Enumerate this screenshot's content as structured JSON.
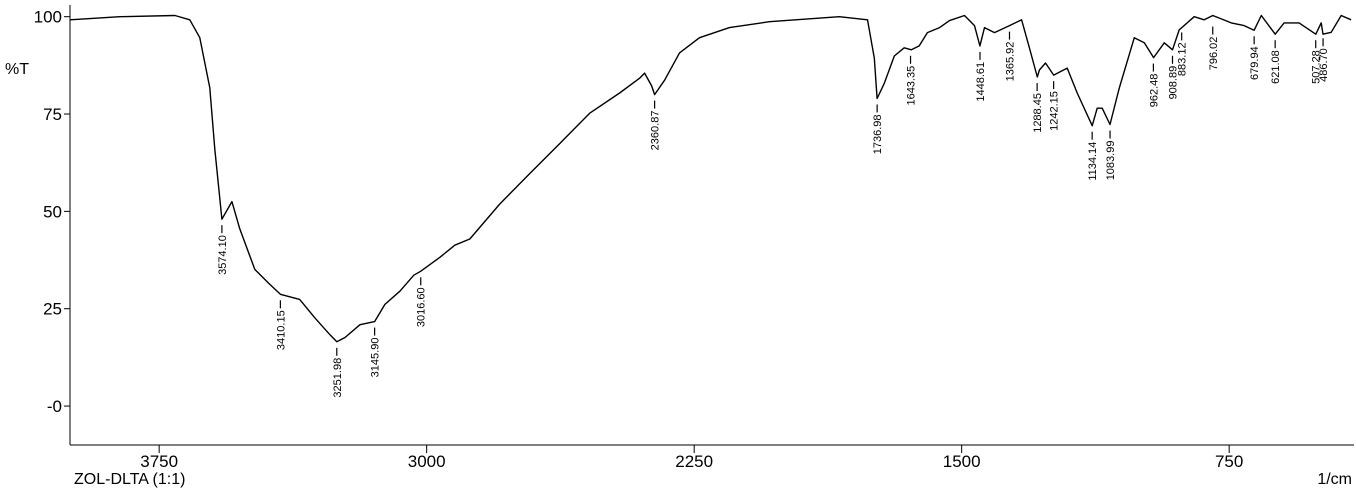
{
  "chart_data": {
    "type": "line",
    "title": "ZOL-DLTA (1:1)",
    "y_label": "%T",
    "x_label": "1/cm",
    "xlim": [
      4000,
      400
    ],
    "ylim": [
      -10,
      103
    ],
    "xticks": [
      3750,
      3000,
      2250,
      1500,
      750
    ],
    "yticks": [
      100,
      75,
      50,
      25,
      {
        "value": 0,
        "label": "-0"
      }
    ],
    "series": [
      {
        "name": "ZOL-DLTA (1:1)",
        "color": "#000000",
        "x": [
          4000,
          3860,
          3706,
          3664,
          3636,
          3608,
          3594,
          3574,
          3546,
          3524,
          3482,
          3440,
          3410,
          3356,
          3314,
          3271,
          3252,
          3229,
          3187,
          3146,
          3117,
          3075,
          3036,
          3017,
          2963,
          2921,
          2879,
          2795,
          2711,
          2627,
          2543,
          2459,
          2403,
          2389,
          2369,
          2361,
          2333,
          2291,
          2235,
          2151,
          2039,
          1843,
          1764,
          1745,
          1737,
          1717,
          1689,
          1661,
          1641,
          1619,
          1596,
          1562,
          1534,
          1492,
          1464,
          1449,
          1436,
          1408,
          1366,
          1332,
          1310,
          1288,
          1282,
          1265,
          1242,
          1204,
          1176,
          1134,
          1120,
          1106,
          1084,
          1058,
          1016,
          988,
          962,
          932,
          909,
          890,
          848,
          820,
          796,
          744,
          708,
          680,
          660,
          621,
          596,
          554,
          507,
          492,
          487,
          464,
          436,
          408
        ],
        "values": [
          99.2,
          100,
          100.3,
          99.2,
          94.6,
          81.7,
          66,
          48,
          52.5,
          45.5,
          35.1,
          31.3,
          28.7,
          27.4,
          22.7,
          18.3,
          16.5,
          17.6,
          20.9,
          21.7,
          26.1,
          29.5,
          33.6,
          34.6,
          38.2,
          41.3,
          42.9,
          51.9,
          59.7,
          67.4,
          75.2,
          80.4,
          84.2,
          85.5,
          82.2,
          80,
          83.7,
          90.7,
          94.6,
          97.2,
          98.7,
          100,
          99.2,
          89.4,
          79,
          82.9,
          89.9,
          92,
          91.5,
          92.5,
          95.9,
          97.2,
          99,
          100.3,
          97.7,
          92.5,
          97.2,
          95.9,
          97.7,
          99.2,
          92,
          84.5,
          86.3,
          88.1,
          85,
          86.8,
          80.4,
          72,
          76.5,
          76.5,
          72.3,
          81.7,
          94.6,
          93.3,
          89.5,
          93.3,
          91.5,
          96.6,
          100,
          99.2,
          100.3,
          98.4,
          97.7,
          96.5,
          100.3,
          95.5,
          98.4,
          98.4,
          95.5,
          98.4,
          95.5,
          96,
          100.3,
          99.2
        ]
      }
    ],
    "peaks": [
      {
        "x": 3574.1,
        "y": 48,
        "label": "3574.10"
      },
      {
        "x": 3410.15,
        "y": 28.7,
        "label": "3410.15"
      },
      {
        "x": 3251.98,
        "y": 16.5,
        "label": "3251.98"
      },
      {
        "x": 3145.9,
        "y": 21.7,
        "label": "3145.90"
      },
      {
        "x": 3016.6,
        "y": 34.6,
        "label": "3016.60"
      },
      {
        "x": 2360.87,
        "y": 80,
        "label": "2360.87"
      },
      {
        "x": 1736.98,
        "y": 79,
        "label": "1736.98"
      },
      {
        "x": 1643.35,
        "y": 91.5,
        "label": "1643.35"
      },
      {
        "x": 1448.61,
        "y": 92.5,
        "label": "1448.61"
      },
      {
        "x": 1365.92,
        "y": 97.7,
        "label": "1365.92"
      },
      {
        "x": 1288.45,
        "y": 84.5,
        "label": "1288.45"
      },
      {
        "x": 1242.15,
        "y": 85,
        "label": "1242.15"
      },
      {
        "x": 1134.14,
        "y": 72,
        "label": "1134.14"
      },
      {
        "x": 1083.99,
        "y": 72.3,
        "label": "1083.99"
      },
      {
        "x": 962.48,
        "y": 89.5,
        "label": "962.48"
      },
      {
        "x": 908.89,
        "y": 91.5,
        "label": "908.89"
      },
      {
        "x": 883.12,
        "y": 97.5,
        "label": "883.12"
      },
      {
        "x": 796.02,
        "y": 99,
        "label": "796.02"
      },
      {
        "x": 679.94,
        "y": 96.5,
        "label": "679.94"
      },
      {
        "x": 621.08,
        "y": 95.5,
        "label": "621.08"
      },
      {
        "x": 507.28,
        "y": 95.5,
        "label": "507.28"
      },
      {
        "x": 486.7,
        "y": 96,
        "label": "486.70"
      }
    ]
  }
}
